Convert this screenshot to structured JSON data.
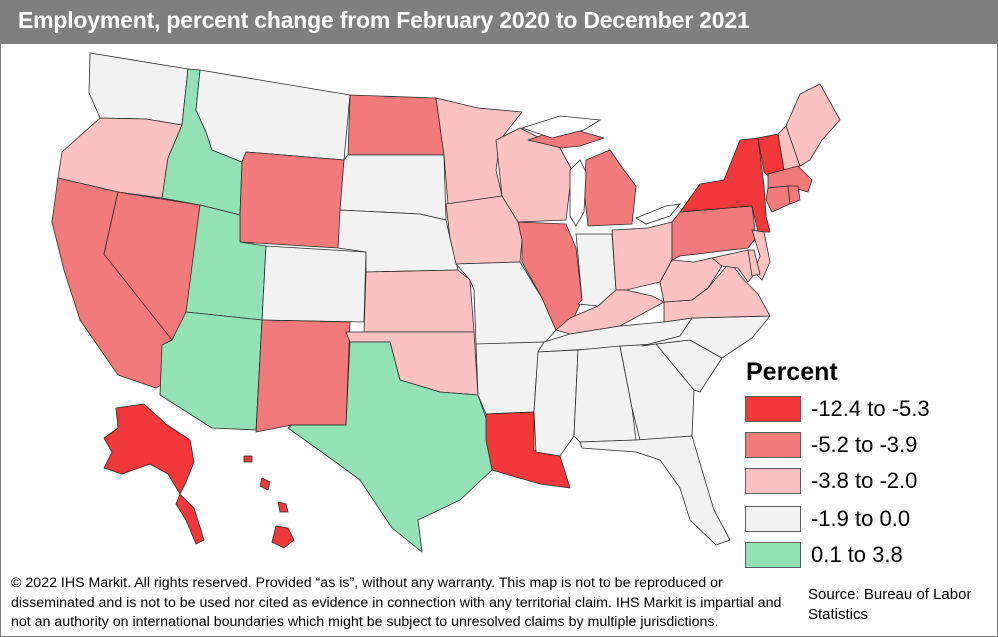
{
  "title": "Employment, percent change from February 2020 to December 2021",
  "legend": {
    "title": "Percent",
    "items": [
      {
        "label": "-12.4 to -5.3",
        "color": "#f2383a"
      },
      {
        "label": "-5.2 to -3.9",
        "color": "#f37a7a"
      },
      {
        "label": "-3.8 to -2.0",
        "color": "#fbc2c1"
      },
      {
        "label": "-1.9 to 0.0",
        "color": "#f2f2f2"
      },
      {
        "label": "0.1 to 3.8",
        "color": "#93e2b6"
      }
    ]
  },
  "states": {
    "WA": "-1.9 to 0.0",
    "OR": "-3.8 to -2.0",
    "CA": "-5.2 to -3.9",
    "NV": "-5.2 to -3.9",
    "ID": "0.1 to 3.8",
    "UT": "0.1 to 3.8",
    "AZ": "0.1 to 3.8",
    "MT": "-1.9 to 0.0",
    "WY": "-5.2 to -3.9",
    "CO": "-1.9 to 0.0",
    "NM": "-5.2 to -3.9",
    "ND": "-5.2 to -3.9",
    "SD": "-1.9 to 0.0",
    "NE": "-1.9 to 0.0",
    "KS": "-3.8 to -2.0",
    "OK": "-3.8 to -2.0",
    "TX": "0.1 to 3.8",
    "MN": "-3.8 to -2.0",
    "IA": "-3.8 to -2.0",
    "MO": "-1.9 to 0.0",
    "AR": "-1.9 to 0.0",
    "LA": "-12.4 to -5.3",
    "WI": "-3.8 to -2.0",
    "IL": "-5.2 to -3.9",
    "MI": "-5.2 to -3.9",
    "IN": "-1.9 to 0.0",
    "OH": "-3.8 to -2.0",
    "KY": "-3.8 to -2.0",
    "TN": "-1.9 to 0.0",
    "MS": "-1.9 to 0.0",
    "AL": "-1.9 to 0.0",
    "GA": "-1.9 to 0.0",
    "FL": "-1.9 to 0.0",
    "SC": "-1.9 to 0.0",
    "NC": "-1.9 to 0.0",
    "VA": "-3.8 to -2.0",
    "WV": "-3.8 to -2.0",
    "PA": "-5.2 to -3.9",
    "NY": "-12.4 to -5.3",
    "VT": "-12.4 to -5.3",
    "NH": "-3.8 to -2.0",
    "ME": "-3.8 to -2.0",
    "MA": "-5.2 to -3.9",
    "CT": "-5.2 to -3.9",
    "RI": "-5.2 to -3.9",
    "NJ": "-3.8 to -2.0",
    "DE": "-3.8 to -2.0",
    "MD": "-3.8 to -2.0",
    "DC": "-3.8 to -2.0",
    "AK": "-12.4 to -5.3",
    "HI": "-12.4 to -5.3"
  },
  "copyright": "© 2022 IHS Markit. All rights reserved. Provided “as is”, without any warranty. This map is not to be reproduced or disseminated and is not to be used nor cited as evidence in connection with any territorial claim. IHS Markit is impartial and not an authority on international boundaries which might be subject to unresolved claims by multiple jurisdictions.",
  "source": "Source: Bureau of Labor Statistics"
}
